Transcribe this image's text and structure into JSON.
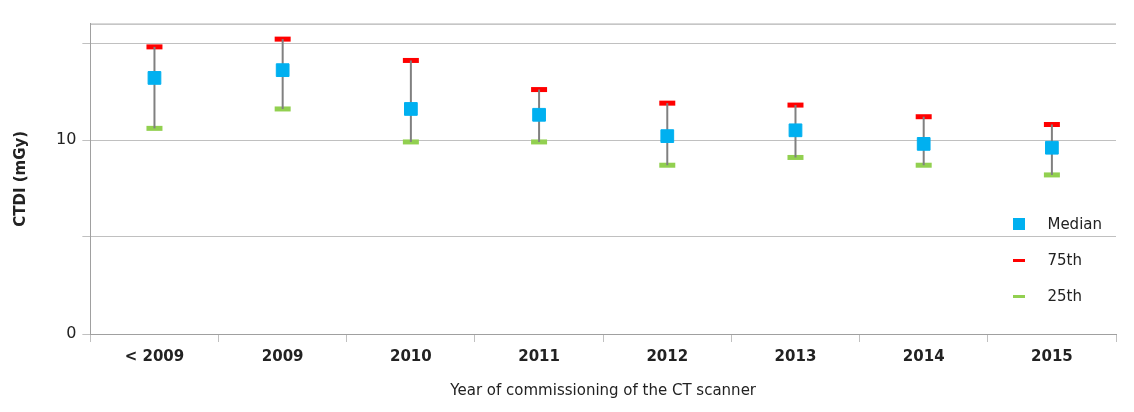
{
  "chart_data": {
    "type": "scatter",
    "xlabel": "Year of commissioning of the CT scanner",
    "ylabel": "CTDI (mGy)",
    "categories": [
      "< 2009",
      "2009",
      "2010",
      "2011",
      "2012",
      "2013",
      "2014",
      "2015"
    ],
    "series": [
      {
        "name": "Median",
        "color": "#00b0f0",
        "marker": "square",
        "values": [
          13.2,
          13.6,
          11.6,
          11.3,
          10.2,
          10.5,
          9.8,
          9.6
        ],
        "errors": [
          [
            10.6,
            14.8
          ],
          [
            11.6,
            15.2
          ],
          [
            9.9,
            14.1
          ],
          [
            9.9,
            12.6
          ],
          [
            8.7,
            11.9
          ],
          [
            9.1,
            11.8
          ],
          [
            8.7,
            11.2
          ],
          [
            8.2,
            10.8
          ]
        ]
      }
    ],
    "annotations": [
      "75th",
      "25th"
    ],
    "ylim": [
      0,
      16
    ],
    "yticks": [
      0,
      {
        "value": 5,
        "label": null
      },
      10,
      {
        "value": 15,
        "label": null
      }
    ],
    "grid": "y",
    "legend": "right"
  }
}
